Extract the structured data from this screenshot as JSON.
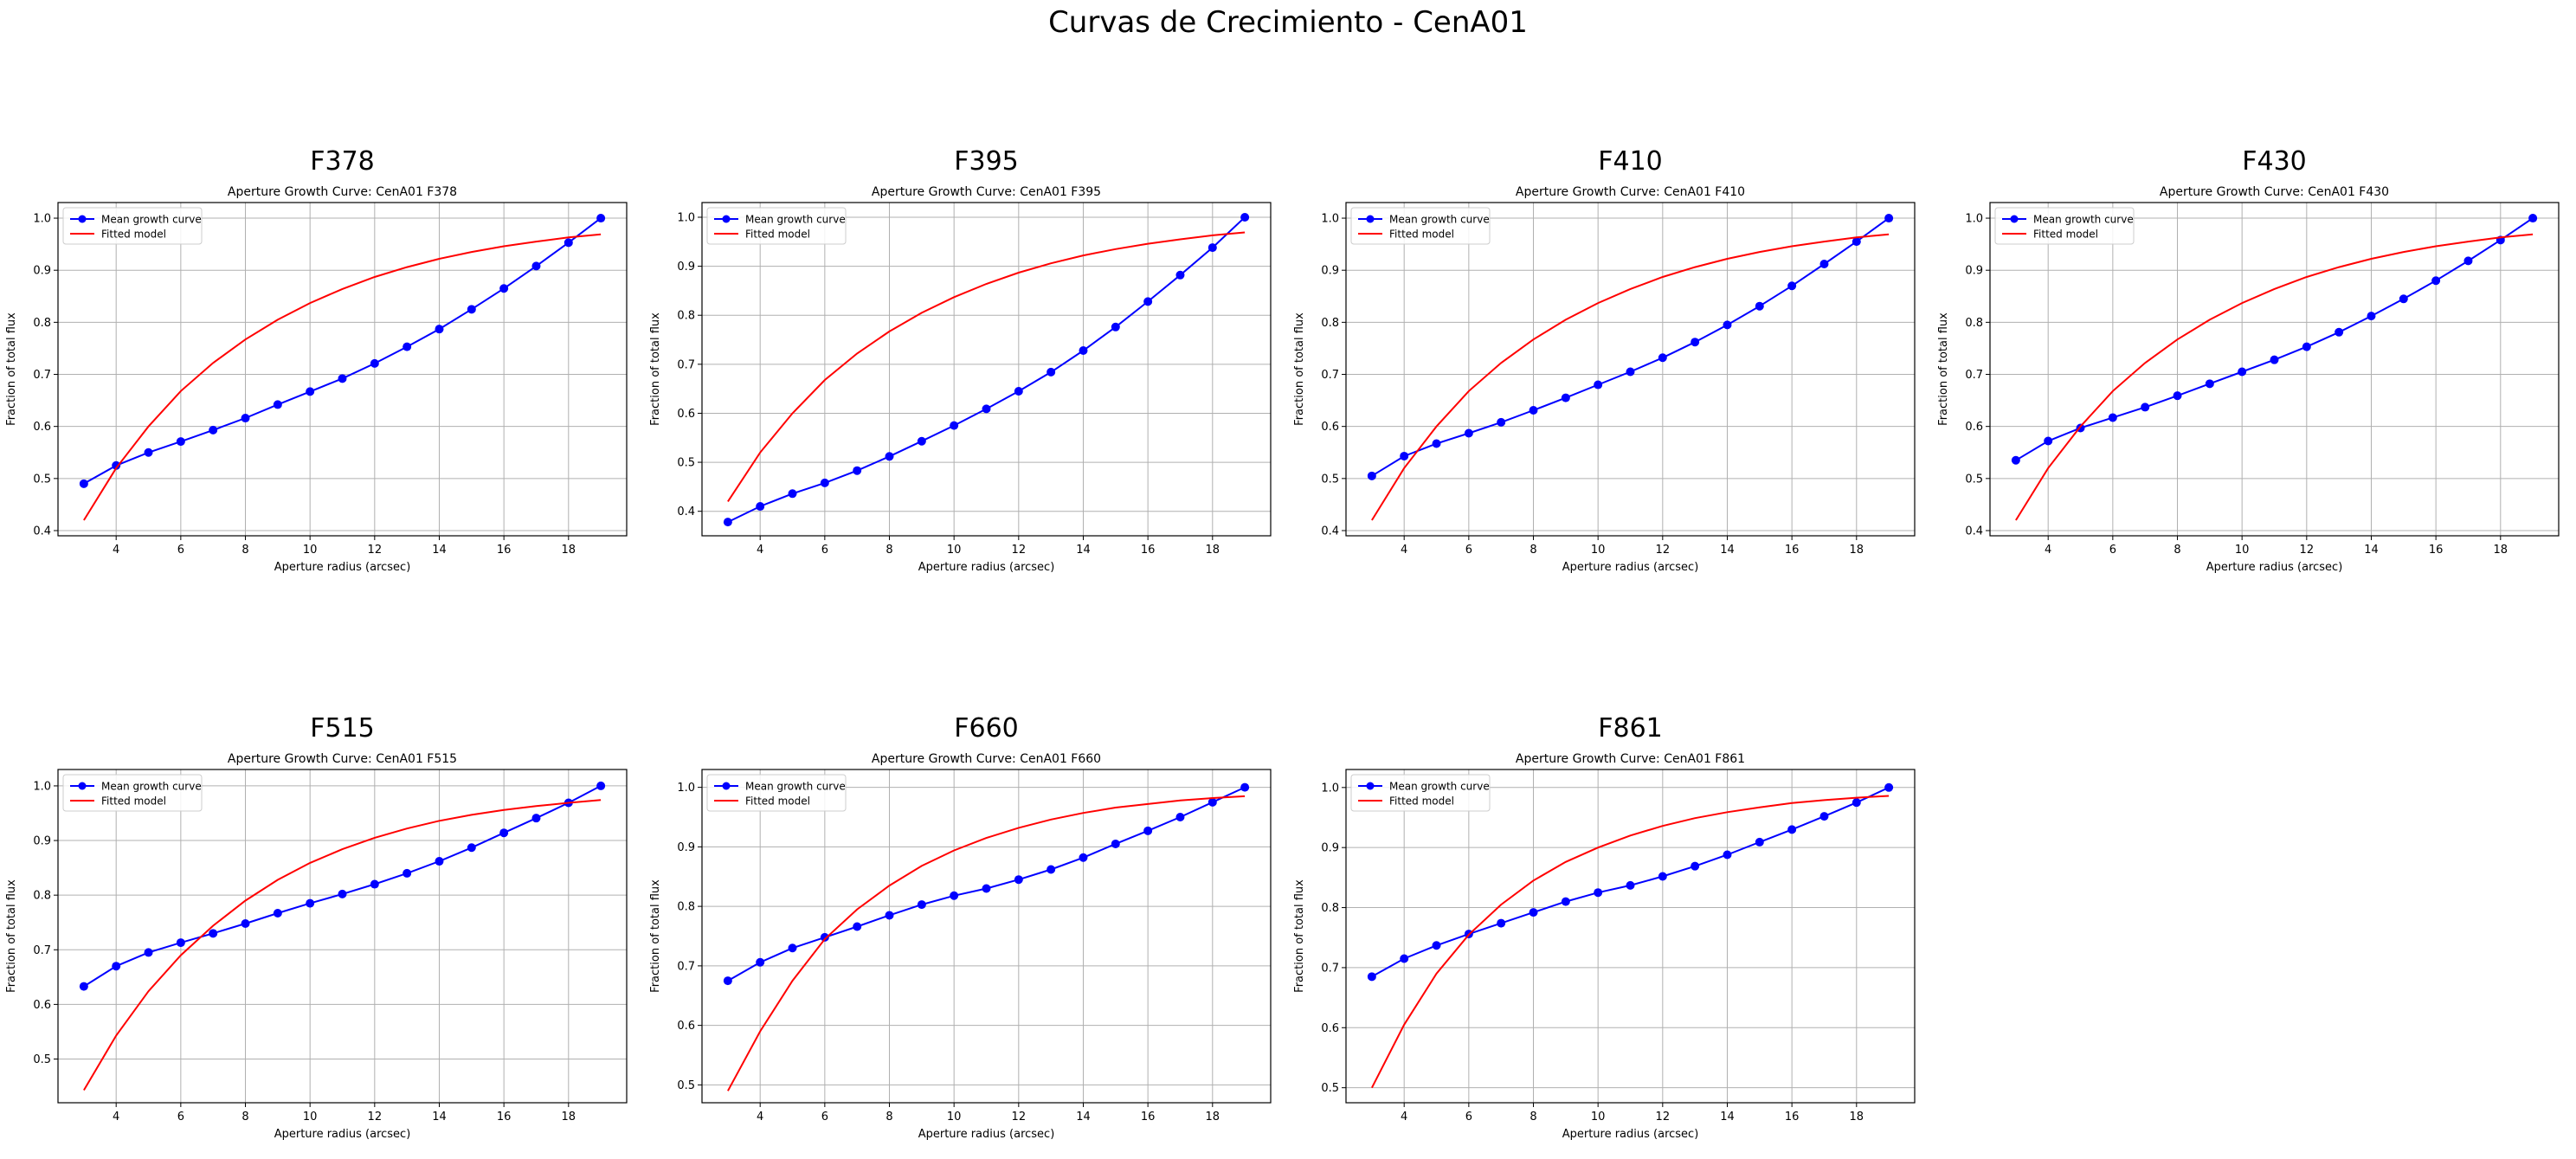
{
  "figure_title": "Curvas de Crecimiento - CenA01",
  "colors": {
    "mean_curve": "#0000ff",
    "fitted_model": "#ff0000",
    "grid": "#b0b0b0",
    "axes": "#000000"
  },
  "chart_data": [
    {
      "type": "line",
      "panel_title": "F378",
      "title": "Aperture Growth Curve: CenA01 F378",
      "xlabel": "Aperture radius (arcsec)",
      "ylabel": "Fraction of total flux",
      "xlim": [
        2.2,
        19.8
      ],
      "ylim": [
        0.39,
        1.03
      ],
      "xticks": [
        4,
        6,
        8,
        10,
        12,
        14,
        16,
        18
      ],
      "yticks": [
        0.4,
        0.5,
        0.6,
        0.7,
        0.8,
        0.9,
        1.0
      ],
      "grid": true,
      "legend": "upper-left",
      "x": [
        3,
        4,
        5,
        6,
        7,
        8,
        9,
        10,
        11,
        12,
        13,
        14,
        15,
        16,
        17,
        18,
        19
      ],
      "series": [
        {
          "name": "Mean growth curve",
          "marker": "circle",
          "values": [
            0.49,
            0.525,
            0.55,
            0.571,
            0.593,
            0.616,
            0.642,
            0.667,
            0.692,
            0.721,
            0.753,
            0.787,
            0.825,
            0.865,
            0.908,
            0.953,
            1.0
          ]
        },
        {
          "name": "Fitted model",
          "marker": "none",
          "values": [
            0.42,
            0.52,
            0.6,
            0.668,
            0.722,
            0.767,
            0.805,
            0.837,
            0.864,
            0.887,
            0.906,
            0.922,
            0.935,
            0.946,
            0.955,
            0.963,
            0.969
          ]
        }
      ]
    },
    {
      "type": "line",
      "panel_title": "F395",
      "title": "Aperture Growth Curve: CenA01 F395",
      "xlabel": "Aperture radius (arcsec)",
      "ylabel": "Fraction of total flux",
      "xlim": [
        2.2,
        19.8
      ],
      "ylim": [
        0.35,
        1.03
      ],
      "xticks": [
        4,
        6,
        8,
        10,
        12,
        14,
        16,
        18
      ],
      "yticks": [
        0.4,
        0.5,
        0.6,
        0.7,
        0.8,
        0.9,
        1.0
      ],
      "grid": true,
      "legend": "upper-left",
      "x": [
        3,
        4,
        5,
        6,
        7,
        8,
        9,
        10,
        11,
        12,
        13,
        14,
        15,
        16,
        17,
        18,
        19
      ],
      "series": [
        {
          "name": "Mean growth curve",
          "marker": "circle",
          "values": [
            0.378,
            0.41,
            0.436,
            0.458,
            0.483,
            0.512,
            0.543,
            0.575,
            0.609,
            0.645,
            0.684,
            0.728,
            0.776,
            0.828,
            0.882,
            0.938,
            1.0
          ]
        },
        {
          "name": "Fitted model",
          "marker": "none",
          "values": [
            0.42,
            0.52,
            0.6,
            0.668,
            0.722,
            0.767,
            0.805,
            0.837,
            0.864,
            0.887,
            0.906,
            0.922,
            0.935,
            0.946,
            0.955,
            0.963,
            0.969
          ]
        }
      ]
    },
    {
      "type": "line",
      "panel_title": "F410",
      "title": "Aperture Growth Curve: CenA01 F410",
      "xlabel": "Aperture radius (arcsec)",
      "ylabel": "Fraction of total flux",
      "xlim": [
        2.2,
        19.8
      ],
      "ylim": [
        0.39,
        1.03
      ],
      "xticks": [
        4,
        6,
        8,
        10,
        12,
        14,
        16,
        18
      ],
      "yticks": [
        0.4,
        0.5,
        0.6,
        0.7,
        0.8,
        0.9,
        1.0
      ],
      "grid": true,
      "legend": "upper-left",
      "x": [
        3,
        4,
        5,
        6,
        7,
        8,
        9,
        10,
        11,
        12,
        13,
        14,
        15,
        16,
        17,
        18,
        19
      ],
      "series": [
        {
          "name": "Mean growth curve",
          "marker": "circle",
          "values": [
            0.505,
            0.543,
            0.567,
            0.587,
            0.608,
            0.631,
            0.655,
            0.68,
            0.705,
            0.732,
            0.762,
            0.795,
            0.831,
            0.87,
            0.912,
            0.955,
            1.0
          ]
        },
        {
          "name": "Fitted model",
          "marker": "none",
          "values": [
            0.42,
            0.52,
            0.6,
            0.668,
            0.722,
            0.767,
            0.805,
            0.837,
            0.864,
            0.887,
            0.906,
            0.922,
            0.935,
            0.946,
            0.955,
            0.963,
            0.969
          ]
        }
      ]
    },
    {
      "type": "line",
      "panel_title": "F430",
      "title": "Aperture Growth Curve: CenA01 F430",
      "xlabel": "Aperture radius (arcsec)",
      "ylabel": "Fraction of total flux",
      "xlim": [
        2.2,
        19.8
      ],
      "ylim": [
        0.39,
        1.03
      ],
      "xticks": [
        4,
        6,
        8,
        10,
        12,
        14,
        16,
        18
      ],
      "yticks": [
        0.4,
        0.5,
        0.6,
        0.7,
        0.8,
        0.9,
        1.0
      ],
      "grid": true,
      "legend": "upper-left",
      "x": [
        3,
        4,
        5,
        6,
        7,
        8,
        9,
        10,
        11,
        12,
        13,
        14,
        15,
        16,
        17,
        18,
        19
      ],
      "series": [
        {
          "name": "Mean growth curve",
          "marker": "circle",
          "values": [
            0.535,
            0.572,
            0.597,
            0.617,
            0.637,
            0.659,
            0.682,
            0.705,
            0.728,
            0.753,
            0.781,
            0.812,
            0.845,
            0.88,
            0.918,
            0.958,
            1.0
          ]
        },
        {
          "name": "Fitted model",
          "marker": "none",
          "values": [
            0.42,
            0.52,
            0.6,
            0.668,
            0.722,
            0.767,
            0.805,
            0.837,
            0.864,
            0.887,
            0.906,
            0.922,
            0.935,
            0.946,
            0.955,
            0.963,
            0.969
          ]
        }
      ]
    },
    {
      "type": "line",
      "panel_title": "F515",
      "title": "Aperture Growth Curve: CenA01 F515",
      "xlabel": "Aperture radius (arcsec)",
      "ylabel": "Fraction of total flux",
      "xlim": [
        2.2,
        19.8
      ],
      "ylim": [
        0.42,
        1.03
      ],
      "xticks": [
        4,
        6,
        8,
        10,
        12,
        14,
        16,
        18
      ],
      "yticks": [
        0.5,
        0.6,
        0.7,
        0.8,
        0.9,
        1.0
      ],
      "grid": true,
      "legend": "upper-left",
      "x": [
        3,
        4,
        5,
        6,
        7,
        8,
        9,
        10,
        11,
        12,
        13,
        14,
        15,
        16,
        17,
        18,
        19
      ],
      "series": [
        {
          "name": "Mean growth curve",
          "marker": "circle",
          "values": [
            0.633,
            0.67,
            0.695,
            0.713,
            0.73,
            0.748,
            0.767,
            0.785,
            0.802,
            0.82,
            0.84,
            0.862,
            0.887,
            0.914,
            0.941,
            0.969,
            1.0
          ]
        },
        {
          "name": "Fitted model",
          "marker": "none",
          "values": [
            0.443,
            0.543,
            0.624,
            0.69,
            0.744,
            0.79,
            0.828,
            0.859,
            0.884,
            0.905,
            0.922,
            0.936,
            0.947,
            0.956,
            0.963,
            0.969,
            0.974
          ]
        }
      ]
    },
    {
      "type": "line",
      "panel_title": "F660",
      "title": "Aperture Growth Curve: CenA01 F660",
      "xlabel": "Aperture radius (arcsec)",
      "ylabel": "Fraction of total flux",
      "xlim": [
        2.2,
        19.8
      ],
      "ylim": [
        0.47,
        1.03
      ],
      "xticks": [
        4,
        6,
        8,
        10,
        12,
        14,
        16,
        18
      ],
      "yticks": [
        0.5,
        0.6,
        0.7,
        0.8,
        0.9,
        1.0
      ],
      "grid": true,
      "legend": "upper-left",
      "x": [
        3,
        4,
        5,
        6,
        7,
        8,
        9,
        10,
        11,
        12,
        13,
        14,
        15,
        16,
        17,
        18,
        19
      ],
      "series": [
        {
          "name": "Mean growth curve",
          "marker": "circle",
          "values": [
            0.675,
            0.706,
            0.73,
            0.748,
            0.766,
            0.785,
            0.803,
            0.818,
            0.83,
            0.845,
            0.862,
            0.882,
            0.905,
            0.927,
            0.95,
            0.975,
            1.0
          ]
        },
        {
          "name": "Fitted model",
          "marker": "none",
          "values": [
            0.49,
            0.59,
            0.675,
            0.745,
            0.795,
            0.835,
            0.868,
            0.894,
            0.915,
            0.932,
            0.946,
            0.957,
            0.966,
            0.972,
            0.978,
            0.982,
            0.985
          ]
        }
      ]
    },
    {
      "type": "line",
      "panel_title": "F861",
      "title": "Aperture Growth Curve: CenA01 F861",
      "xlabel": "Aperture radius (arcsec)",
      "ylabel": "Fraction of total flux",
      "xlim": [
        2.2,
        19.8
      ],
      "ylim": [
        0.475,
        1.03
      ],
      "xticks": [
        4,
        6,
        8,
        10,
        12,
        14,
        16,
        18
      ],
      "yticks": [
        0.5,
        0.6,
        0.7,
        0.8,
        0.9,
        1.0
      ],
      "grid": true,
      "legend": "upper-left",
      "x": [
        3,
        4,
        5,
        6,
        7,
        8,
        9,
        10,
        11,
        12,
        13,
        14,
        15,
        16,
        17,
        18,
        19
      ],
      "series": [
        {
          "name": "Mean growth curve",
          "marker": "circle",
          "values": [
            0.685,
            0.715,
            0.737,
            0.756,
            0.774,
            0.792,
            0.81,
            0.825,
            0.837,
            0.852,
            0.869,
            0.888,
            0.909,
            0.93,
            0.952,
            0.975,
            1.0
          ]
        },
        {
          "name": "Fitted model",
          "marker": "none",
          "values": [
            0.5,
            0.605,
            0.69,
            0.755,
            0.805,
            0.845,
            0.876,
            0.9,
            0.92,
            0.936,
            0.949,
            0.959,
            0.967,
            0.974,
            0.979,
            0.983,
            0.986
          ]
        }
      ]
    }
  ]
}
